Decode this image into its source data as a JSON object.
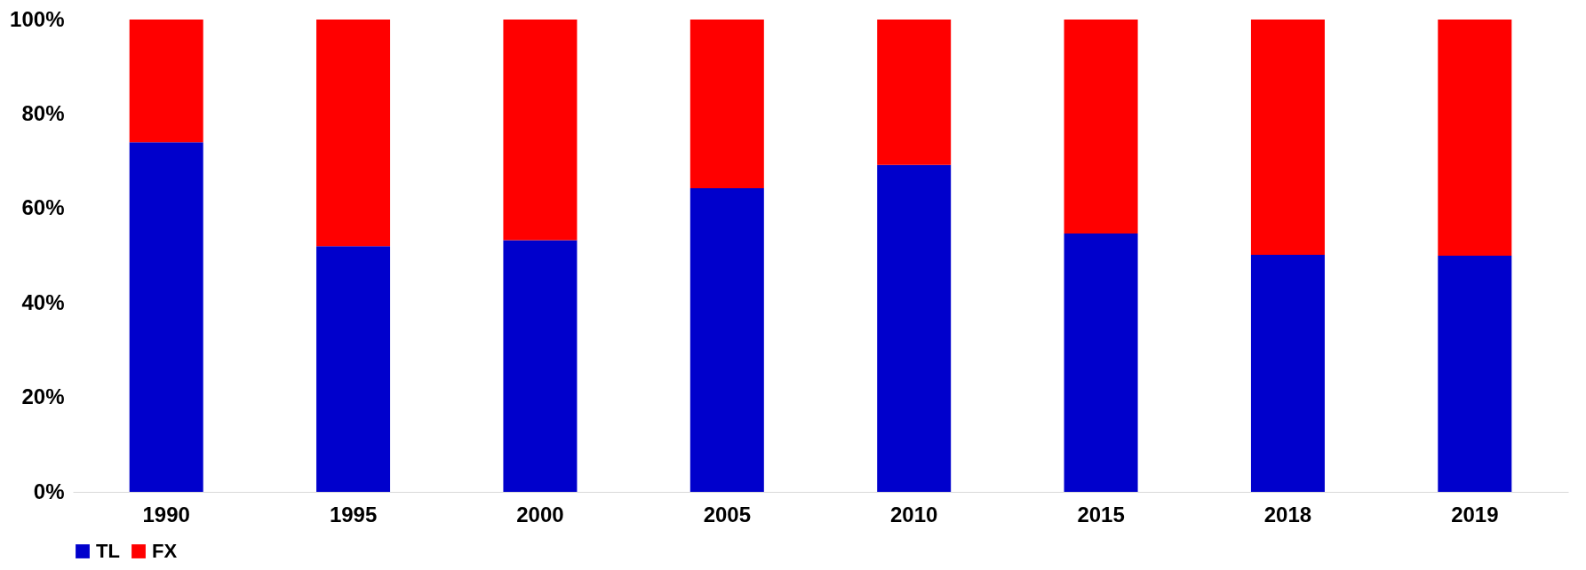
{
  "chart_data": {
    "type": "bar",
    "stacked": true,
    "categories": [
      "1990",
      "1995",
      "2000",
      "2005",
      "2010",
      "2015",
      "2018",
      "2019"
    ],
    "series": [
      {
        "name": "TL",
        "color": "#0000cc",
        "values": [
          74,
          52,
          53.3,
          64.3,
          69.2,
          54.7,
          50.2,
          50
        ]
      },
      {
        "name": "FX",
        "color": "#ff0000",
        "values": [
          26,
          48,
          46.7,
          35.7,
          30.8,
          45.3,
          49.8,
          50
        ]
      }
    ],
    "ylim": [
      0,
      100
    ],
    "yticks": [
      {
        "value": 0,
        "label": "0%"
      },
      {
        "value": 20,
        "label": "20%"
      },
      {
        "value": 40,
        "label": "40%"
      },
      {
        "value": 60,
        "label": "60%"
      },
      {
        "value": 80,
        "label": "80%"
      },
      {
        "value": 100,
        "label": "100%"
      }
    ],
    "grid": false,
    "legend": "bottom"
  }
}
